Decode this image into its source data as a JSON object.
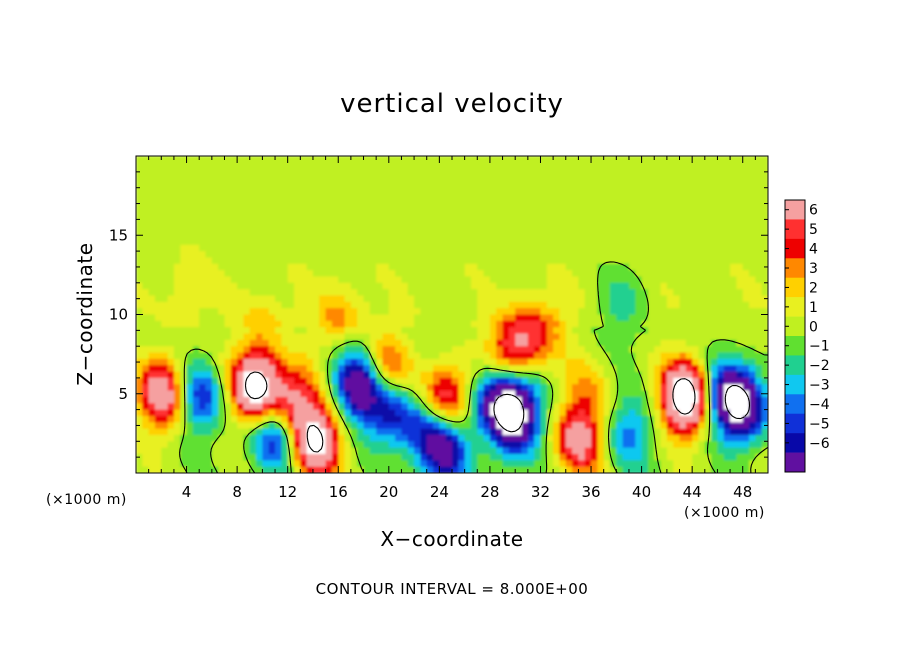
{
  "chart_data": {
    "type": "heatmap",
    "title": "vertical velocity",
    "xlabel": "X−coordinate",
    "ylabel": "Z−coordinate",
    "x_unit": "(×1000 m)",
    "z_unit": "(×1000 m)",
    "xlim": [
      0,
      50
    ],
    "ylim": [
      0,
      20
    ],
    "x_ticks": [
      4,
      8,
      12,
      16,
      20,
      24,
      28,
      32,
      36,
      40,
      44,
      48
    ],
    "y_ticks": [
      5,
      10,
      15
    ],
    "colorbar": {
      "ticks": [
        6,
        5,
        4,
        3,
        2,
        1,
        0,
        -1,
        -2,
        -3,
        -4,
        -5,
        -6
      ],
      "tick_labels": [
        "6",
        "5",
        "4",
        "3",
        "2",
        "1",
        "0",
        "−1",
        "−2",
        "−3",
        "−4",
        "−5",
        "−6"
      ],
      "colors": [
        "#f5a0a0",
        "#ff3030",
        "#ee0000",
        "#ff8800",
        "#ffd000",
        "#e8f020",
        "#c0f020",
        "#60e030",
        "#20d090",
        "#10c8f0",
        "#1070f0",
        "#1030d8",
        "#0808a8",
        "#6010a0"
      ]
    },
    "background_value": 0.3,
    "features": [
      {
        "x": 2.2,
        "z": 5.0,
        "value": 6.5
      },
      {
        "x": 5.0,
        "z": 4.8,
        "value": -4.5
      },
      {
        "x": 9.5,
        "z": 5.5,
        "value": 9.0
      },
      {
        "x": 12.5,
        "z": 4.5,
        "value": 5.0
      },
      {
        "x": 14.2,
        "z": 2.0,
        "value": 8.0
      },
      {
        "x": 11.0,
        "z": 2.3,
        "value": -5.0
      },
      {
        "x": 17.5,
        "z": 5.5,
        "value": -7.0
      },
      {
        "x": 20.0,
        "z": 4.0,
        "value": -4.5
      },
      {
        "x": 19.8,
        "z": 6.5,
        "value": 4.0
      },
      {
        "x": 24.5,
        "z": 4.7,
        "value": 5.5
      },
      {
        "x": 24.3,
        "z": 1.5,
        "value": -6.5
      },
      {
        "x": 22.5,
        "z": 3.0,
        "value": -3.0
      },
      {
        "x": 28.5,
        "z": 4.5,
        "value": -5.0
      },
      {
        "x": 30.0,
        "z": 4.0,
        "value": -7.5
      },
      {
        "x": 29.8,
        "z": 7.8,
        "value": 5.0
      },
      {
        "x": 32.0,
        "z": 9.0,
        "value": 3.0
      },
      {
        "x": 35.0,
        "z": 2.0,
        "value": 5.5
      },
      {
        "x": 35.5,
        "z": 5.0,
        "value": 2.0
      },
      {
        "x": 38.5,
        "z": 11.0,
        "value": -2.5
      },
      {
        "x": 39.0,
        "z": 2.5,
        "value": -3.0
      },
      {
        "x": 43.5,
        "z": 4.8,
        "value": 10.0
      },
      {
        "x": 46.5,
        "z": 5.0,
        "value": -4.5
      },
      {
        "x": 48.0,
        "z": 4.2,
        "value": -7.5
      },
      {
        "x": 16.0,
        "z": 10.0,
        "value": 2.5
      },
      {
        "x": 10.0,
        "z": 9.5,
        "value": 1.5
      },
      {
        "x": 4.0,
        "z": 12.0,
        "value": 1.2
      },
      {
        "x": 30.0,
        "z": 2.0,
        "value": -2.0
      }
    ]
  },
  "footer": "CONTOUR INTERVAL = 8.000E+00"
}
